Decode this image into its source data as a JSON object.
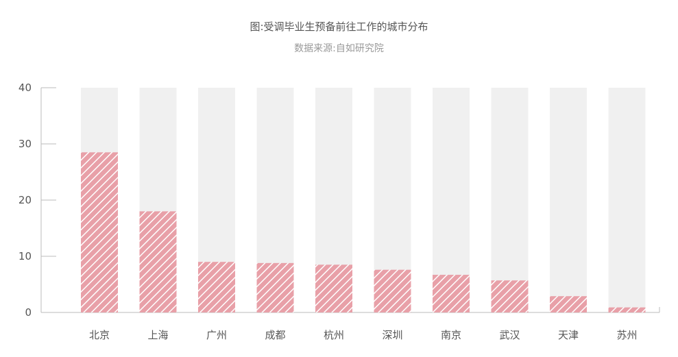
{
  "chart_data": {
    "type": "bar",
    "title": "图:受调毕业生预备前往工作的城市分布",
    "subtitle": "数据来源:自如研究院",
    "categories": [
      "北京",
      "上海",
      "广州",
      "成都",
      "杭州",
      "深圳",
      "南京",
      "武汉",
      "天津",
      "苏州"
    ],
    "values": [
      28.5,
      18,
      9,
      8.8,
      8.5,
      7.6,
      6.7,
      5.7,
      2.9,
      0.9
    ],
    "ylim": [
      0,
      40
    ],
    "yticks": [
      0,
      10,
      20,
      30,
      40
    ],
    "xlabel": "",
    "ylabel": "",
    "grid": false,
    "colors": {
      "bar": "#e8a0a8",
      "hatch": "#ffffff",
      "track": "#f0f0f0",
      "axis": "#bbbbbb"
    }
  }
}
